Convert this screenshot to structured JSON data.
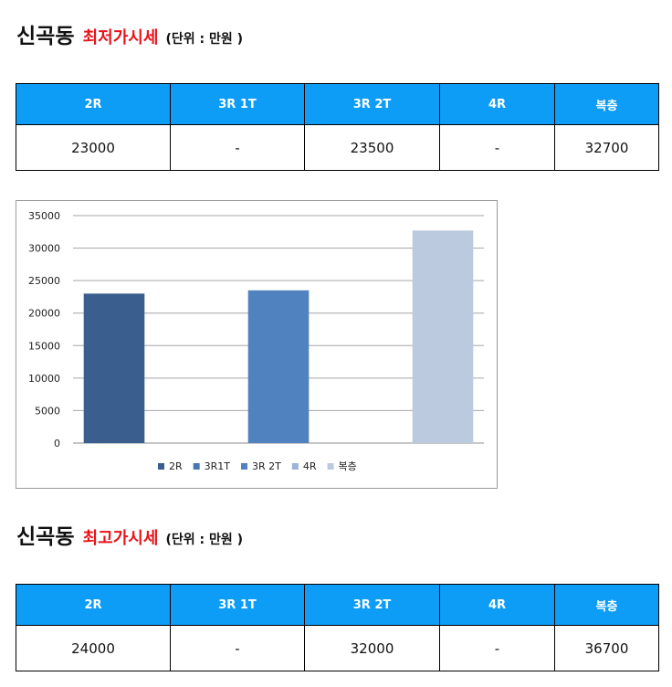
{
  "section_min": {
    "title": "신곡동",
    "subtitle": "최저가시세",
    "unit": "(단위 : 만원 )",
    "headers": [
      "2R",
      "3R 1T",
      "3R 2T",
      "4R",
      "복층"
    ],
    "values": [
      "23000",
      "-",
      "23500",
      "-",
      "32700"
    ]
  },
  "section_max": {
    "title": "신곡동",
    "subtitle": "최고가시세",
    "unit": "(단위 : 만원 )",
    "headers": [
      "2R",
      "3R 1T",
      "3R 2T",
      "4R",
      "복층"
    ],
    "values": [
      "24000",
      "-",
      "32000",
      "-",
      "36700"
    ]
  },
  "colors": {
    "header_bg": "#0d9cf6",
    "accent_red": "#e8141b"
  },
  "chart_data": {
    "type": "bar",
    "categories": [
      "2R",
      "3R1T",
      "3R 2T",
      "4R",
      "복층"
    ],
    "values": [
      23000,
      null,
      23500,
      null,
      32700
    ],
    "colors": [
      "#3a5f8e",
      "#4a77b1",
      "#5082bf",
      "#9db3d7",
      "#bccadf"
    ],
    "yticks": [
      "35000",
      "30000",
      "25000",
      "20000",
      "15000",
      "10000",
      "5000",
      "0"
    ],
    "ylim": [
      0,
      35000
    ],
    "legend_position": "bottom",
    "grid": true
  }
}
